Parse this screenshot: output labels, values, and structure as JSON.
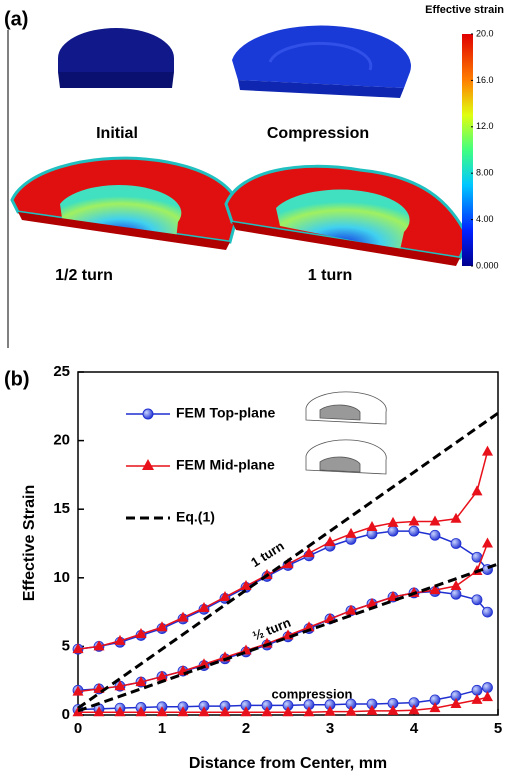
{
  "panel_a": {
    "label": "(a)",
    "colorbar": {
      "title": "Effective strain",
      "lim": [
        0,
        20
      ],
      "ticks": [
        {
          "value": 20,
          "label": "20.0"
        },
        {
          "value": 16,
          "label": "16.0"
        },
        {
          "value": 12,
          "label": "12.0"
        },
        {
          "value": 8,
          "label": "8.00"
        },
        {
          "value": 4,
          "label": "4.00"
        },
        {
          "value": 0,
          "label": "0.000"
        }
      ]
    },
    "captions": [
      "Initial",
      "Compression",
      "1/2 turn",
      "1 turn"
    ]
  },
  "chart_data": {
    "type": "line",
    "panel_label": "(b)",
    "x_label": "Distance from Center, mm",
    "y_label": "Effective Strain",
    "xlim": [
      0,
      5
    ],
    "ylim": [
      0,
      25
    ],
    "xticks": [
      0,
      1,
      2,
      3,
      4,
      5
    ],
    "yticks": [
      0,
      5,
      10,
      15,
      20,
      25
    ],
    "x": [
      0,
      0.25,
      0.5,
      0.75,
      1,
      1.25,
      1.5,
      1.75,
      2,
      2.25,
      2.5,
      2.75,
      3,
      3.25,
      3.5,
      3.75,
      4,
      4.25,
      4.5,
      4.75,
      4.875
    ],
    "series": [
      {
        "name": "FEM Top-plane",
        "color": "#1f2fd0",
        "marker": "circle",
        "curves": [
          {
            "values": [
              4.8,
              5.0,
              5.3,
              5.8,
              6.3,
              7.0,
              7.7,
              8.5,
              9.3,
              10.1,
              10.9,
              11.6,
              12.3,
              12.8,
              13.2,
              13.4,
              13.4,
              13.1,
              12.5,
              11.5,
              10.6
            ]
          },
          {
            "values": [
              1.8,
              1.9,
              2.1,
              2.4,
              2.8,
              3.2,
              3.6,
              4.1,
              4.6,
              5.1,
              5.7,
              6.3,
              7.0,
              7.6,
              8.1,
              8.6,
              8.9,
              9.0,
              8.8,
              8.4,
              7.5
            ]
          },
          {
            "values": [
              0.4,
              0.45,
              0.5,
              0.55,
              0.6,
              0.6,
              0.65,
              0.65,
              0.7,
              0.7,
              0.7,
              0.75,
              0.75,
              0.8,
              0.8,
              0.85,
              0.9,
              1.1,
              1.4,
              1.8,
              2.0
            ]
          }
        ]
      },
      {
        "name": "FEM Mid-plane",
        "color": "#e8101a",
        "marker": "triangle",
        "curves": [
          {
            "values": [
              4.8,
              5.0,
              5.4,
              5.9,
              6.4,
              7.1,
              7.8,
              8.6,
              9.4,
              10.2,
              11.0,
              11.8,
              12.6,
              13.2,
              13.7,
              14.0,
              14.1,
              14.1,
              14.3,
              16.3,
              19.2
            ]
          },
          {
            "values": [
              1.7,
              1.9,
              2.1,
              2.4,
              2.8,
              3.2,
              3.7,
              4.2,
              4.7,
              5.2,
              5.8,
              6.4,
              7.0,
              7.6,
              8.1,
              8.6,
              8.9,
              9.1,
              9.4,
              10.5,
              12.5
            ]
          },
          {
            "values": [
              0.2,
              0.2,
              0.2,
              0.2,
              0.2,
              0.2,
              0.2,
              0.2,
              0.2,
              0.2,
              0.2,
              0.2,
              0.25,
              0.25,
              0.3,
              0.3,
              0.35,
              0.5,
              0.8,
              1.1,
              1.3
            ]
          }
        ]
      },
      {
        "name": "Eq.(1)",
        "color": "#000000",
        "marker": "none",
        "dash": true,
        "x": [
          0,
          5
        ],
        "curves": [
          {
            "values": [
              0.5,
              22
            ]
          },
          {
            "values": [
              0.3,
              11
            ]
          }
        ]
      }
    ],
    "annotations": [
      "1 turn",
      "½ turn",
      "compression"
    ]
  }
}
